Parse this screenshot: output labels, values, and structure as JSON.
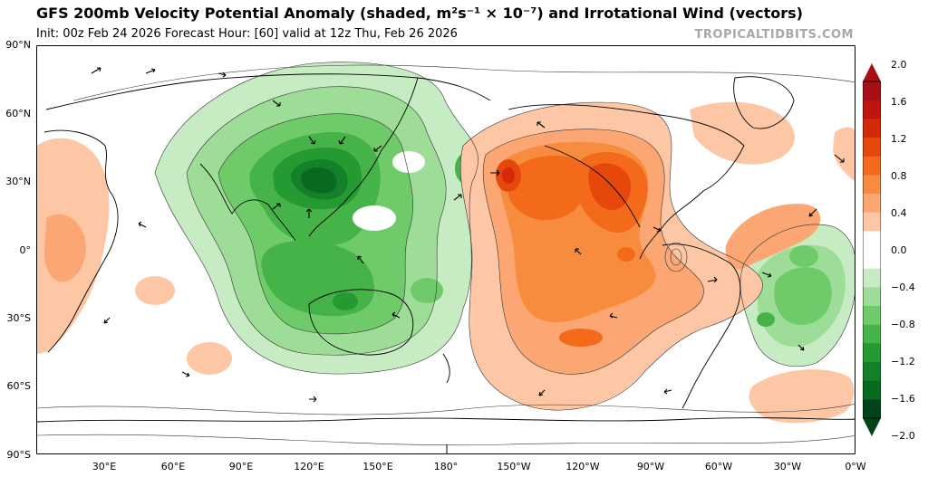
{
  "header": {
    "title": "GFS 200mb Velocity Potential Anomaly (shaded, m²s⁻¹ × 10⁻⁷) and Irrotational Wind (vectors)",
    "subtitle": "Init: 00z Feb 24 2026   Forecast Hour: [60]   valid at 12z Thu, Feb 26 2026",
    "source": "TROPICALTIDBITS.COM"
  },
  "axes": {
    "lat_labels": [
      "90°N",
      "60°N",
      "30°N",
      "0°",
      "30°S",
      "60°S",
      "90°S"
    ],
    "lon_labels": [
      "30°E",
      "60°E",
      "90°E",
      "120°E",
      "150°E",
      "180°",
      "150°W",
      "120°W",
      "90°W",
      "60°W",
      "30°W",
      "0°W"
    ]
  },
  "colorbar": {
    "labels": [
      "2.0",
      "1.6",
      "1.2",
      "0.8",
      "0.4",
      "0.0",
      "−0.4",
      "−0.8",
      "−1.2",
      "−1.6",
      "−2.0"
    ],
    "colors": [
      "#a50f15",
      "#c0150f",
      "#d42a0a",
      "#e6480c",
      "#f26a1a",
      "#f88c3e",
      "#fca773",
      "#fdc7a6",
      "#ffffff",
      "#ffffff",
      "#c7ecc3",
      "#9edd97",
      "#6fcb6a",
      "#45b347",
      "#259a33",
      "#13812a",
      "#086a1f",
      "#00441b"
    ]
  },
  "map": {
    "features": [
      "velocity-potential-anomaly-shading",
      "irrotational-wind-vectors",
      "coastlines"
    ]
  }
}
